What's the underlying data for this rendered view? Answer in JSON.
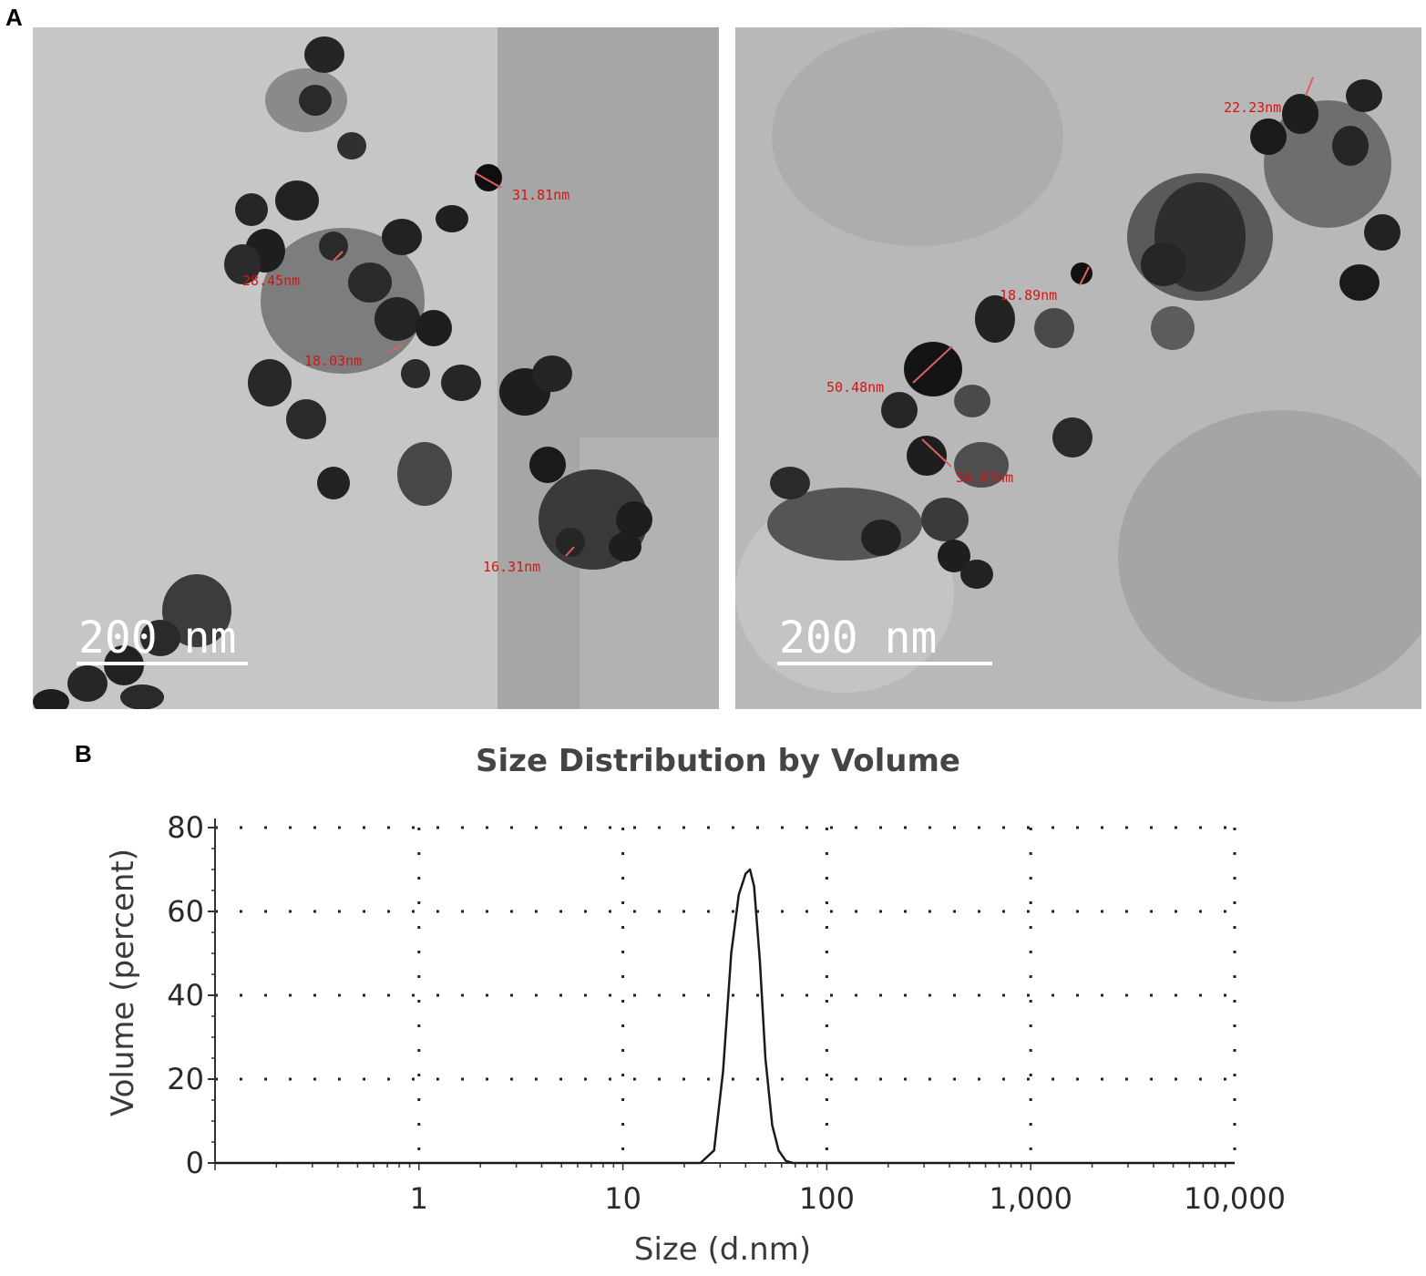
{
  "panel_labels": {
    "a": "A",
    "b": "B"
  },
  "tem_images": [
    {
      "scale_bar": "200 nm",
      "measurements": [
        "31.81nm",
        "28.45nm",
        "18.03nm",
        "16.31nm"
      ]
    },
    {
      "scale_bar": "200 nm",
      "measurements": [
        "22.23nm",
        "18.89nm",
        "50.48nm",
        "34.67nm"
      ]
    }
  ],
  "colors": {
    "measurement_text": "#d41414",
    "particle": "#1c1c1c",
    "background_left": "#c8c8c8",
    "background_right": "#b9b9b9"
  },
  "chart_data": {
    "type": "line",
    "title": "Size Distribution by Volume",
    "xlabel": "Size (d.nm)",
    "ylabel": "Volume (percent)",
    "x_scale": "log",
    "xlim": [
      0.1,
      10000
    ],
    "ylim": [
      0,
      80
    ],
    "x_tick_labels": [
      "1",
      "10",
      "100",
      "1,000",
      "10,000"
    ],
    "y_tick_labels": [
      "0",
      "20",
      "40",
      "60",
      "80"
    ],
    "grid": "dotted",
    "series": [
      {
        "x": [
          0.1,
          1,
          10,
          24,
          28,
          31,
          34,
          37,
          40,
          42,
          44,
          47,
          50,
          54,
          58,
          63,
          68,
          100,
          1000,
          10000
        ],
        "values": [
          0,
          0,
          0,
          0,
          3,
          22,
          50,
          64,
          69,
          70,
          66,
          48,
          25,
          9,
          3,
          0.5,
          0,
          0,
          0,
          0
        ]
      }
    ]
  }
}
